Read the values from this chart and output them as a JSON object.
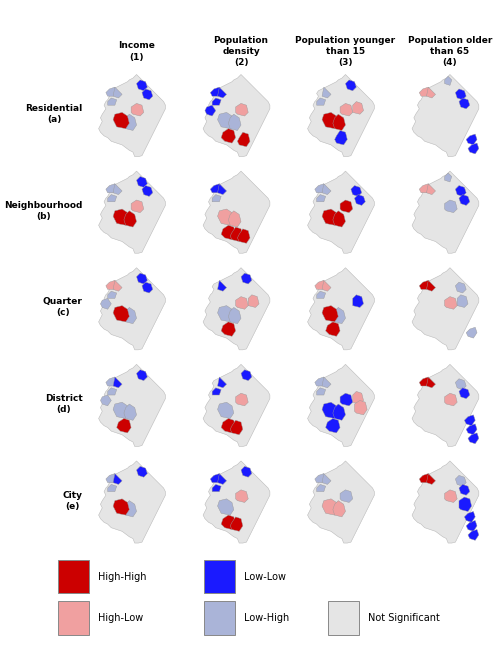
{
  "col_headers": [
    "Income\n(1)",
    "Population\ndensity\n(2)",
    "Population younger\nthan 15\n(3)",
    "Population older\nthan 65\n(4)"
  ],
  "row_labels": [
    "Residential\n(a)",
    "Neighbourhood\n(b)",
    "Quarter\n(c)",
    "District\n(d)",
    "City\n(e)"
  ],
  "legend_items": [
    {
      "label": "High-High",
      "color": "#cc0000"
    },
    {
      "label": "Low-Low",
      "color": "#1a1aff"
    },
    {
      "label": "High-Low",
      "color": "#f0a0a0"
    },
    {
      "label": "Low-High",
      "color": "#aab4d8"
    },
    {
      "label": "Not Significant",
      "color": "#e8e8e8"
    }
  ],
  "colors": {
    "high_high": "#cc0000",
    "low_low": "#1a1aff",
    "high_low": "#f0a0a0",
    "low_high": "#aab4d8",
    "not_sig": "#e5e5e5",
    "border": "#bbbbbb",
    "background": "#ffffff"
  },
  "figsize": [
    5.03,
    6.48
  ],
  "dpi": 100
}
